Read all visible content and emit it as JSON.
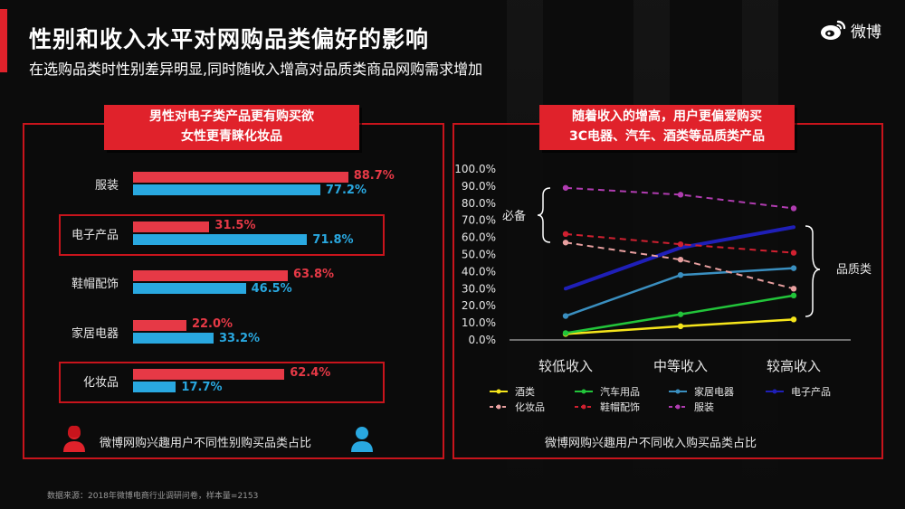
{
  "header": {
    "title": "性别和收入水平对网购品类偏好的影响",
    "subtitle": "在选购品类时性别差异明显,同时随收入增高对品质类商品网购需求增加",
    "logo_text": "微博"
  },
  "colors": {
    "accent": "#e0222b",
    "female": "#e63946",
    "male": "#29a8e0"
  },
  "left_panel": {
    "tag_line1": "男性对电子类产品更有购买欲",
    "tag_line2": "女性更青睐化妆品",
    "caption": "微博网购兴趣用户不同性别购买品类占比",
    "female_icon": "female-user-icon",
    "male_icon": "male-user-icon"
  },
  "right_panel": {
    "tag_line1": "随着收入的增高，用户更偏爱购买",
    "tag_line2": "3C电器、汽车、酒类等品质类产品",
    "caption": "微博网购兴趣用户不同收入购买品类占比",
    "bracket_essential": "必备",
    "bracket_quality": "品质类"
  },
  "source": "数据来源：2018年微博电商行业调研问卷，样本量=2153",
  "chart_data": [
    {
      "type": "bar",
      "orientation": "horizontal",
      "categories": [
        "服装",
        "电子产品",
        "鞋帽配饰",
        "家居电器",
        "化妆品"
      ],
      "series": [
        {
          "name": "",
          "color": "#e63946",
          "values": [
            88.7,
            31.5,
            63.8,
            22.0,
            62.4
          ],
          "labels": [
            "88.7%",
            "31.5%",
            "63.8%",
            "22.0%",
            "62.4%"
          ]
        },
        {
          "name": "",
          "color": "#29a8e0",
          "values": [
            77.2,
            71.8,
            46.5,
            33.2,
            17.7
          ],
          "labels": [
            "77.2%",
            "71.8%",
            "46.5%",
            "33.2%",
            "17.7%"
          ]
        }
      ],
      "highlighted": [
        "电子产品",
        "化妆品"
      ],
      "unit": "%"
    },
    {
      "type": "line",
      "categories": [
        "较低收入",
        "中等收入",
        "较高收入"
      ],
      "ylim": [
        0,
        100
      ],
      "yticks": [
        "0.0%",
        "10.0%",
        "20.0%",
        "30.0%",
        "40.0%",
        "50.0%",
        "60.0%",
        "70.0%",
        "80.0%",
        "90.0%",
        "100.0%"
      ],
      "legend_position": "bottom",
      "series": [
        {
          "name": "酒类",
          "color": "#f5e51b",
          "dashed": false,
          "values": [
            3.5,
            8,
            12
          ]
        },
        {
          "name": "汽车用品",
          "color": "#22c43a",
          "dashed": false,
          "values": [
            4,
            15,
            26
          ]
        },
        {
          "name": "家居电器",
          "color": "#3a8fc0",
          "dashed": false,
          "values": [
            14,
            38,
            42
          ]
        },
        {
          "name": "电子产品",
          "color": "#1f1fb8",
          "dashed": false,
          "values": [
            30,
            54,
            66
          ]
        },
        {
          "name": "化妆品",
          "color": "#e9a0a0",
          "dashed": true,
          "values": [
            57,
            47,
            30
          ]
        },
        {
          "name": "鞋帽配饰",
          "color": "#d02030",
          "dashed": true,
          "values": [
            62,
            56,
            51
          ]
        },
        {
          "name": "服装",
          "color": "#b03cb0",
          "dashed": true,
          "values": [
            89,
            85,
            77
          ]
        }
      ]
    }
  ]
}
